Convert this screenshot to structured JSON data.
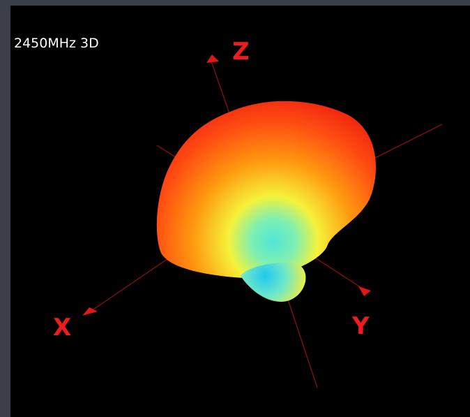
{
  "title": "2450MHz 3D",
  "axes": {
    "z": "Z",
    "x": "X",
    "y": "Y"
  }
}
